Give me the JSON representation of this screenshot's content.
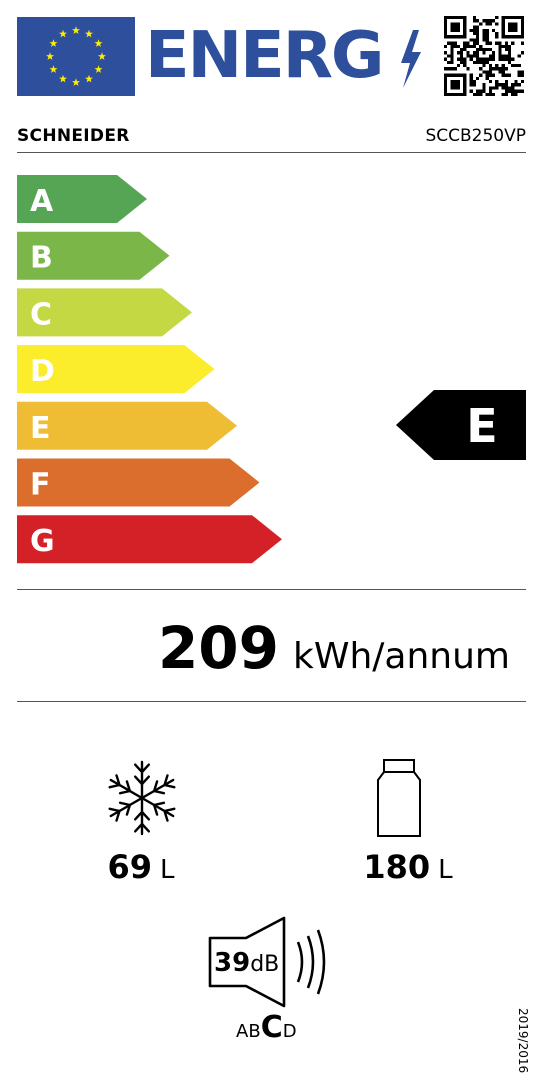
{
  "header": {
    "energy_word": "ENERG",
    "eu_flag_icon": "eu-flag-icon",
    "bolt_icon": "lightning-bolt-icon",
    "qr_icon": "qr-code-icon"
  },
  "supplier": {
    "brand": "SCHNEIDER",
    "model": "SCCB250VP"
  },
  "scale": {
    "classes": [
      {
        "letter": "A",
        "color": "#55a554"
      },
      {
        "letter": "B",
        "color": "#7ab648"
      },
      {
        "letter": "C",
        "color": "#c4d843"
      },
      {
        "letter": "D",
        "color": "#fbec2c"
      },
      {
        "letter": "E",
        "color": "#eebd34"
      },
      {
        "letter": "F",
        "color": "#db6e2c"
      },
      {
        "letter": "G",
        "color": "#d42027"
      }
    ],
    "rated_class": "E",
    "indicator_color": "#000000"
  },
  "consumption": {
    "value": "209",
    "unit": "kWh/annum"
  },
  "freezer": {
    "icon": "snowflake-icon",
    "value": "69",
    "unit": "L"
  },
  "fridge": {
    "icon": "bottle-icon",
    "value": "180",
    "unit": "L"
  },
  "noise": {
    "icon": "speaker-icon",
    "value": "39",
    "unit": "dB",
    "classes": [
      "A",
      "B",
      "C",
      "D"
    ],
    "rated": "C"
  },
  "regulation": "2019/2016",
  "brand_color": "#2e4f9c"
}
